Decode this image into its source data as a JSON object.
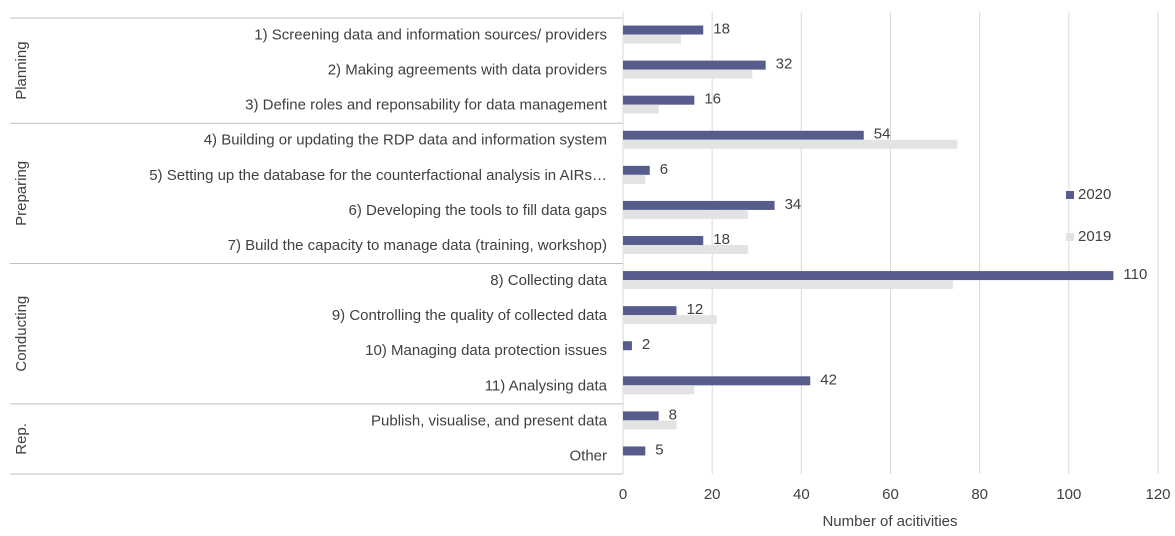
{
  "chart_data": {
    "type": "hbar",
    "categories": [
      "1) Screening data and information sources/ providers",
      "2) Making agreements with data providers",
      "3) Define roles and reponsability for data management",
      "4) Building or updating the RDP data and information system",
      "5) Setting up the database for the counterfactional analysis in AIRs…",
      "6) Developing the tools to fill data gaps",
      "7) Build the capacity to manage data (training, workshop)",
      "8) Collecting data",
      "9) Controlling the quality of collected data",
      "10) Managing data protection issues",
      "11) Analysing data",
      "Publish, visualise, and present data",
      "Other"
    ],
    "category_groups": [
      "Planning",
      "Planning",
      "Planning",
      "Preparing",
      "Preparing",
      "Preparing",
      "Preparing",
      "Conducting",
      "Conducting",
      "Conducting",
      "Conducting",
      "Rep.",
      "Rep."
    ],
    "series": [
      {
        "name": "2020",
        "color": "#565d8c",
        "values": [
          18,
          32,
          16,
          54,
          6,
          34,
          18,
          110,
          12,
          2,
          42,
          8,
          5
        ]
      },
      {
        "name": "2019",
        "color": "#e3e3e3",
        "values": [
          13,
          29,
          8,
          75,
          5,
          28,
          28,
          74,
          21,
          0,
          16,
          12,
          0
        ]
      }
    ],
    "xlabel": "Number  of acitivities",
    "xlim": [
      0,
      120
    ],
    "xticks": [
      0,
      20,
      40,
      60,
      80,
      100,
      120
    ],
    "grid": true,
    "legend": "right"
  }
}
